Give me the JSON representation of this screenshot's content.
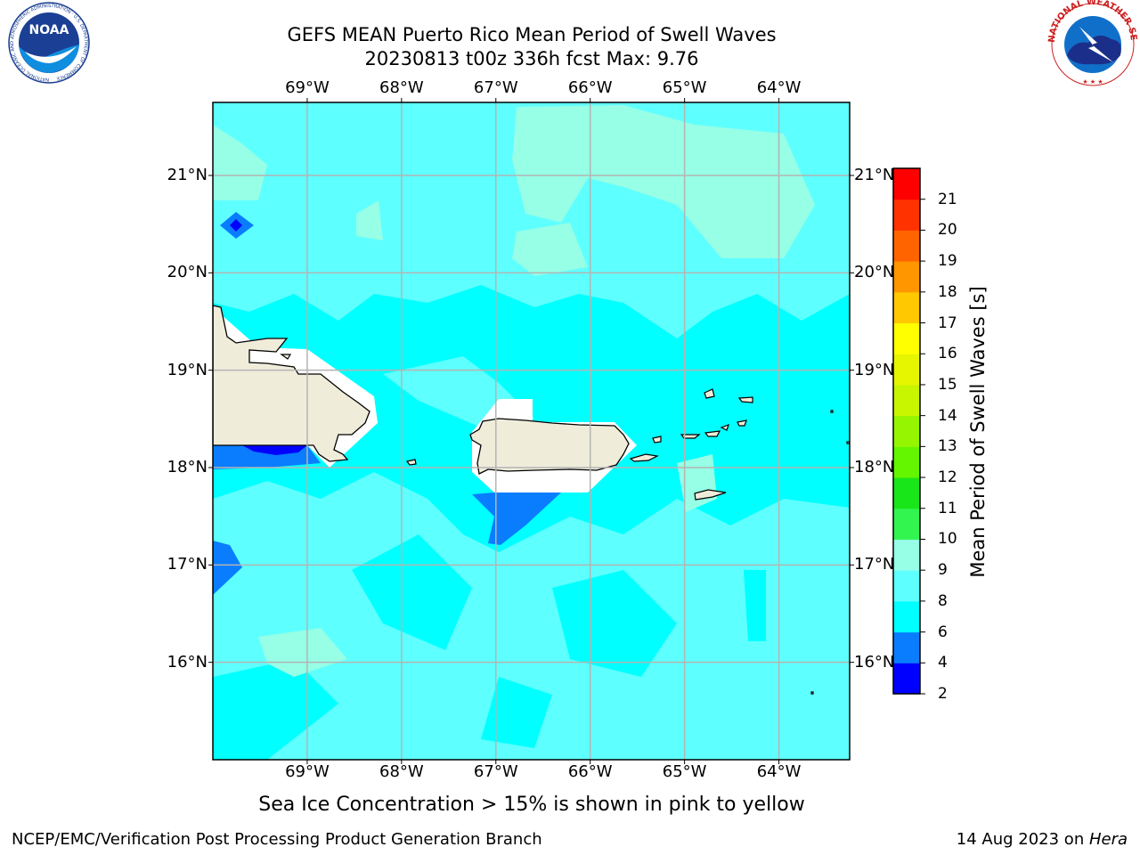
{
  "title": {
    "line1": "GEFS MEAN Puerto Rico Mean Period of Swell Waves",
    "line2": "20230813 t00z 336h fcst   Max: 9.76"
  },
  "map": {
    "lon_range": [
      -70.0,
      -63.25
    ],
    "lat_range": [
      15.0,
      21.75
    ],
    "lon_ticks": [
      {
        "value": -69,
        "label": "69°W"
      },
      {
        "value": -68,
        "label": "68°W"
      },
      {
        "value": -67,
        "label": "67°W"
      },
      {
        "value": -66,
        "label": "66°W"
      },
      {
        "value": -65,
        "label": "65°W"
      },
      {
        "value": -64,
        "label": "64°W"
      }
    ],
    "lat_ticks": [
      {
        "value": 21,
        "label": "21°N"
      },
      {
        "value": 20,
        "label": "20°N"
      },
      {
        "value": 19,
        "label": "19°N"
      },
      {
        "value": 18,
        "label": "18°N"
      },
      {
        "value": 17,
        "label": "17°N"
      },
      {
        "value": 16,
        "label": "16°N"
      }
    ],
    "grid": true,
    "colors": {
      "ocean_base": "#00ffff",
      "band_8_9": "#5effff",
      "band_9_10": "#96ffe6",
      "band_4_6": "#0a7dff",
      "band_2_4": "#0000ff",
      "land": "#efecda",
      "coastline": "#000000",
      "grid": "#b4b4b4"
    }
  },
  "colorbar": {
    "label": "Mean Period of Swell Waves [s]",
    "levels": [
      "2",
      "4",
      "6",
      "8",
      "9",
      "10",
      "11",
      "12",
      "13",
      "14",
      "15",
      "16",
      "17",
      "18",
      "19",
      "20",
      "21"
    ],
    "colors": [
      "#0000ff",
      "#0a7dff",
      "#00ffff",
      "#5effff",
      "#96ffe6",
      "#32f550",
      "#19e619",
      "#64f500",
      "#96f500",
      "#c8f500",
      "#e6f500",
      "#ffff00",
      "#ffc800",
      "#ff9600",
      "#ff6400",
      "#ff3200",
      "#ff0000"
    ]
  },
  "caption": "Sea Ice Concentration > 15% is shown in pink to yellow",
  "footer": {
    "left": "NCEP/EMC/Verification Post Processing Product Generation Branch",
    "right_prefix": "14 Aug 2023 on ",
    "right_host": "Hera"
  },
  "logos": {
    "left": "NOAA",
    "left_ring": "NATIONAL OCEANIC AND ATMOSPHERIC ADMINISTRATION · U.S. DEPARTMENT OF COMMERCE",
    "right_ring": "NATIONAL WEATHER SERVICE"
  }
}
